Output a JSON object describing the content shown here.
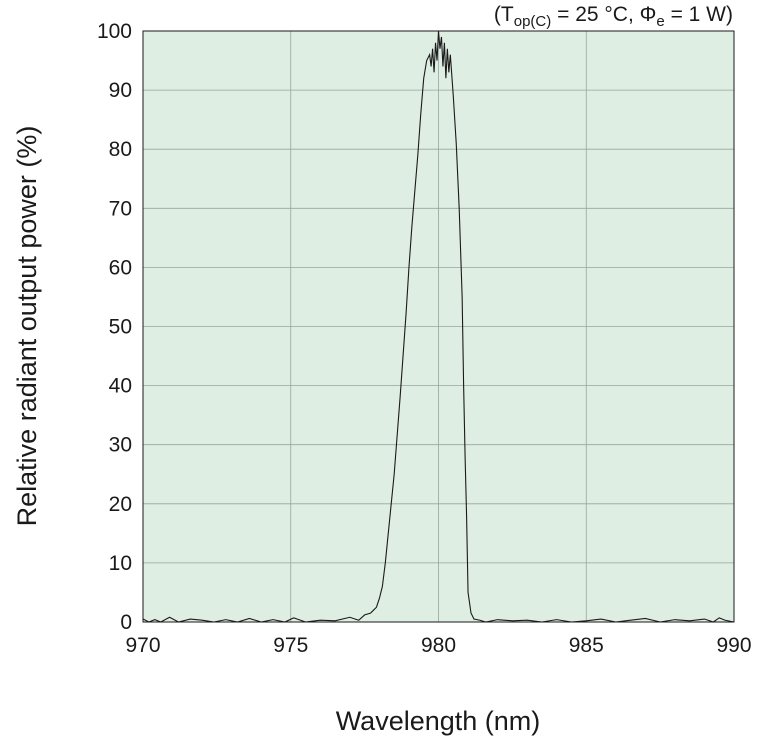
{
  "chart_data": {
    "type": "line",
    "title": "",
    "conditions": {
      "open": "(T",
      "t_sub": "op(C)",
      "mid": " = 25 °C, Φ",
      "phi_sub": "e",
      "close": " = 1 W)"
    },
    "xlabel": "Wavelength (nm)",
    "ylabel": "Relative radiant output power (%)",
    "xlim": [
      970,
      990
    ],
    "ylim": [
      0,
      100
    ],
    "x_ticks": [
      "970",
      "975",
      "980",
      "985",
      "990"
    ],
    "y_ticks": [
      "0",
      "10",
      "20",
      "30",
      "40",
      "50",
      "60",
      "70",
      "80",
      "90",
      "100"
    ],
    "grid": true,
    "colors": {
      "plot_background": "#dfeee2",
      "grid": "#9aa39c",
      "line": "#1a1a1a"
    },
    "series": [
      {
        "x": [
          970.0,
          970.2,
          970.4,
          970.6,
          970.9,
          971.2,
          971.6,
          972.0,
          972.4,
          972.8,
          973.2,
          973.6,
          974.0,
          974.4,
          974.8,
          975.1,
          975.5,
          976.0,
          976.5,
          977.0,
          977.3,
          977.5,
          977.7,
          977.8,
          977.9,
          978.0,
          978.1,
          978.2,
          978.3,
          978.5,
          978.7,
          978.9,
          979.0,
          979.1,
          979.2,
          979.3,
          979.4,
          979.5,
          979.6,
          979.7,
          979.75,
          979.8,
          979.85,
          979.9,
          979.95,
          980.0,
          980.05,
          980.1,
          980.15,
          980.2,
          980.25,
          980.3,
          980.35,
          980.4,
          980.5,
          980.6,
          980.7,
          980.8,
          980.85,
          980.9,
          980.95,
          981.0,
          981.1,
          981.2,
          981.4,
          981.6,
          982.0,
          982.5,
          983.0,
          983.5,
          984.0,
          984.5,
          985.0,
          985.5,
          986.0,
          986.5,
          987.0,
          987.5,
          988.0,
          988.5,
          989.0,
          989.3,
          989.5,
          989.7,
          990.0
        ],
        "y": [
          0.5,
          0,
          0.4,
          0,
          0.8,
          0,
          0.5,
          0.3,
          0,
          0.4,
          0,
          0.6,
          0,
          0.4,
          0,
          0.7,
          0,
          0.3,
          0.2,
          0.8,
          0.3,
          1.2,
          1.5,
          2,
          2.5,
          4,
          6,
          10,
          15,
          25,
          38,
          52,
          60,
          67,
          73,
          79,
          86,
          92,
          95,
          96,
          94,
          97,
          93,
          98,
          95,
          100,
          97,
          99,
          94,
          98,
          92,
          97,
          93,
          96,
          89,
          81,
          70,
          55,
          40,
          28,
          18,
          5,
          1.5,
          0.5,
          0.3,
          0,
          0.4,
          0.2,
          0.3,
          0,
          0.4,
          0,
          0.2,
          0.5,
          0,
          0.3,
          0.6,
          0,
          0.4,
          0.2,
          0.5,
          0,
          0.7,
          0.3,
          0
        ]
      }
    ]
  }
}
